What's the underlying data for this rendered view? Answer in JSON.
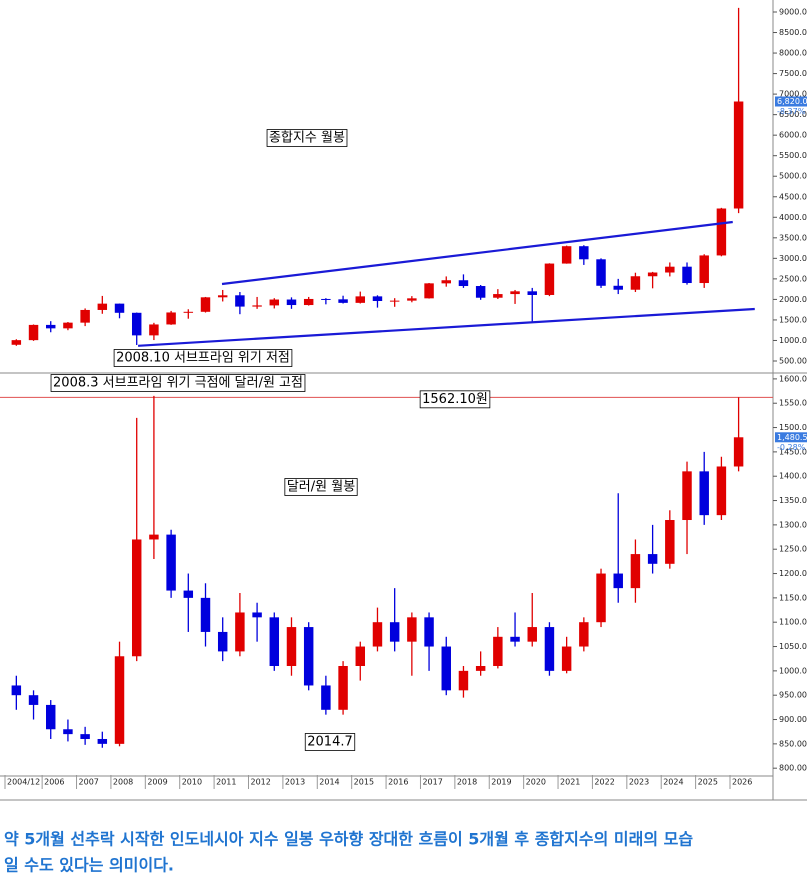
{
  "chart_data": [
    {
      "type": "candlestick",
      "up_color": "#e00000",
      "down_color": "#0000dd",
      "xlim": [
        2004.775,
        2027.25
      ],
      "ylim": [
        232,
        9219
      ],
      "yticks": [
        {
          "value": 500,
          "label": "500.00"
        },
        {
          "value": 1000,
          "label": "1000.00"
        },
        {
          "value": 1500,
          "label": "1500.00"
        },
        {
          "value": 2000,
          "label": "2000.00"
        },
        {
          "value": 2500,
          "label": "2500.00"
        },
        {
          "value": 3000,
          "label": "3000.00"
        },
        {
          "value": 3500,
          "label": "3500.00"
        },
        {
          "value": 4000,
          "label": "4000.00"
        },
        {
          "value": 4500,
          "label": "4500.00"
        },
        {
          "value": 5000,
          "label": "5000.00"
        },
        {
          "value": 5500,
          "label": "5500.00"
        },
        {
          "value": 6000,
          "label": "6000.00"
        },
        {
          "value": 6500,
          "label": "6500.00"
        },
        {
          "value": 7000,
          "label": "7000.00"
        },
        {
          "value": 7500,
          "label": "7500.00"
        },
        {
          "value": 8000,
          "label": "8000.00"
        },
        {
          "value": 8500,
          "label": "8500.00"
        },
        {
          "value": 9000,
          "label": "9000.00"
        }
      ],
      "x": [
        2005.25,
        2005.75,
        2006.25,
        2006.75,
        2007.25,
        2007.75,
        2008.25,
        2008.75,
        2009.25,
        2009.75,
        2010.25,
        2010.75,
        2011.25,
        2011.75,
        2012.25,
        2012.75,
        2013.25,
        2013.75,
        2014.25,
        2014.75,
        2015.25,
        2015.75,
        2016.25,
        2016.75,
        2017.25,
        2017.75,
        2018.25,
        2018.75,
        2019.25,
        2019.75,
        2020.25,
        2020.75,
        2021.25,
        2021.75,
        2022.25,
        2022.75,
        2023.25,
        2023.75,
        2024.25,
        2024.75,
        2025.25,
        2025.75,
        2026.25
      ],
      "open": [
        895,
        1008,
        1379,
        1295,
        1434,
        1743,
        1897,
        1674,
        1124,
        1390,
        1682,
        1698,
        2051,
        2100,
        1825,
        1854,
        1997,
        1863,
        2011,
        2002,
        1916,
        2074,
        1961,
        1970,
        2026,
        2391,
        2467,
        2326,
        2041,
        2130,
        2197,
        2108,
        2873,
        3296,
        2977,
        2332,
        2236,
        2564,
        2655,
        2797,
        2399,
        3071,
        4214
      ],
      "high": [
        1030,
        1390,
        1470,
        1450,
        1780,
        2085,
        1900,
        1680,
        1430,
        1720,
        1760,
        2060,
        2230,
        2180,
        2060,
        2030,
        2050,
        2060,
        2030,
        2090,
        2190,
        2100,
        2030,
        2080,
        2400,
        2560,
        2610,
        2350,
        2250,
        2230,
        2280,
        2880,
        3310,
        3320,
        3000,
        2500,
        2650,
        2670,
        2900,
        2900,
        3100,
        4230,
        9100
      ],
      "low": [
        870,
        990,
        1200,
        1250,
        1350,
        1650,
        1540,
        890,
        1010,
        1380,
        1530,
        1680,
        1950,
        1640,
        1770,
        1780,
        1770,
        1850,
        1880,
        1900,
        1900,
        1800,
        1820,
        1930,
        2020,
        2310,
        2280,
        1990,
        2010,
        1890,
        1440,
        2080,
        2870,
        2840,
        2280,
        2130,
        2180,
        2270,
        2560,
        2360,
        2280,
        3050,
        4100
      ],
      "close": [
        1008,
        1379,
        1295,
        1434,
        1743,
        1897,
        1674,
        1124,
        1390,
        1682,
        1698,
        2051,
        2100,
        1825,
        1854,
        1997,
        1863,
        2011,
        2002,
        1916,
        2074,
        1961,
        1970,
        2026,
        2391,
        2467,
        2326,
        2041,
        2130,
        2197,
        2108,
        2873,
        3296,
        2977,
        2332,
        2236,
        2564,
        2655,
        2797,
        2399,
        3071,
        4214,
        6820
      ],
      "trendlines": [
        {
          "color": "#1a1ad6",
          "points": [
            [
              2011.23,
              2375
            ],
            [
              2026.08,
              3885
            ]
          ]
        },
        {
          "color": "#1a1ad6",
          "points": [
            [
              2008.79,
              870
            ],
            [
              2026.72,
              1767
            ]
          ]
        }
      ],
      "annotations": [
        "종합지수 월봉",
        "2008.10 서브프라임 위기 저점"
      ],
      "price_tags": [
        "6,820.00",
        "-8.37%"
      ]
    },
    {
      "type": "candlestick",
      "up_color": "#e00000",
      "down_color": "#0000dd",
      "xlim": [
        2004.775,
        2027.25
      ],
      "ylim": [
        786,
        1608
      ],
      "xticks": [
        {
          "value": 2004.92,
          "label": "2004/12"
        },
        2006,
        2007,
        2008,
        2009,
        2010,
        2011,
        2012,
        2013,
        2014,
        2015,
        2016,
        2017,
        2018,
        2019,
        2020,
        2021,
        2022,
        2023,
        2024,
        2025,
        2026
      ],
      "yticks": [
        {
          "value": 800,
          "label": "800.00"
        },
        {
          "value": 850,
          "label": "850.00"
        },
        {
          "value": 900,
          "label": "900.00"
        },
        {
          "value": 950,
          "label": "950.00"
        },
        {
          "value": 1000,
          "label": "1000.00"
        },
        {
          "value": 1050,
          "label": "1050.00"
        },
        {
          "value": 1100,
          "label": "1100.00"
        },
        {
          "value": 1150,
          "label": "1150.00"
        },
        {
          "value": 1200,
          "label": "1200.00"
        },
        {
          "value": 1250,
          "label": "1250.00"
        },
        {
          "value": 1300,
          "label": "1300.00"
        },
        {
          "value": 1350,
          "label": "1350.00"
        },
        {
          "value": 1400,
          "label": "1400.00"
        },
        {
          "value": 1450,
          "label": "1450.00"
        },
        {
          "value": 1500,
          "label": "1500.00"
        },
        {
          "value": 1550,
          "label": "1550.00"
        },
        {
          "value": 1600,
          "label": "1600.00"
        }
      ],
      "x": [
        2005.25,
        2005.75,
        2006.25,
        2006.75,
        2007.25,
        2007.75,
        2008.25,
        2008.75,
        2009.25,
        2009.75,
        2010.25,
        2010.75,
        2011.25,
        2011.75,
        2012.25,
        2012.75,
        2013.25,
        2013.75,
        2014.25,
        2014.75,
        2015.25,
        2015.75,
        2016.25,
        2016.75,
        2017.25,
        2017.75,
        2018.25,
        2018.75,
        2019.25,
        2019.75,
        2020.25,
        2020.75,
        2021.25,
        2021.75,
        2022.25,
        2022.75,
        2023.25,
        2023.75,
        2024.25,
        2024.75,
        2025.25,
        2025.75,
        2026.25
      ],
      "open": [
        970,
        950,
        930,
        880,
        870,
        860,
        850,
        1030,
        1270,
        1280,
        1165,
        1150,
        1080,
        1040,
        1120,
        1110,
        1010,
        1090,
        970,
        920,
        1010,
        1050,
        1100,
        1060,
        1110,
        1050,
        960,
        1000,
        1010,
        1070,
        1060,
        1090,
        1000,
        1050,
        1100,
        1200,
        1170,
        1240,
        1220,
        1310,
        1410,
        1320,
        1420
      ],
      "high": [
        990,
        960,
        940,
        900,
        885,
        875,
        1060,
        1520,
        1565,
        1290,
        1200,
        1180,
        1110,
        1160,
        1140,
        1120,
        1110,
        1100,
        990,
        1020,
        1060,
        1130,
        1170,
        1120,
        1120,
        1070,
        1010,
        1040,
        1090,
        1120,
        1160,
        1100,
        1070,
        1110,
        1210,
        1365,
        1270,
        1300,
        1330,
        1430,
        1450,
        1440,
        1562.1
      ],
      "low": [
        920,
        900,
        860,
        855,
        848,
        842,
        845,
        1020,
        1230,
        1150,
        1080,
        1050,
        1020,
        1030,
        1060,
        1000,
        990,
        960,
        910,
        910,
        980,
        1040,
        1040,
        990,
        1000,
        950,
        945,
        990,
        1005,
        1050,
        1050,
        990,
        995,
        1040,
        1090,
        1140,
        1140,
        1200,
        1210,
        1240,
        1300,
        1310,
        1410
      ],
      "close": [
        950,
        930,
        880,
        870,
        860,
        850,
        1030,
        1270,
        1280,
        1165,
        1150,
        1080,
        1040,
        1120,
        1110,
        1010,
        1090,
        970,
        920,
        1010,
        1050,
        1100,
        1060,
        1110,
        1050,
        960,
        1000,
        1010,
        1070,
        1060,
        1090,
        1000,
        1050,
        1100,
        1200,
        1170,
        1240,
        1220,
        1310,
        1410,
        1320,
        1420,
        1480
      ],
      "hline": {
        "value": 1562.1,
        "label": "1562.10원",
        "color": "#e05050"
      },
      "annotations": [
        "2008.3 서브프라임 위기 극점에 달러/원 고점",
        "달러/원 월봉",
        "2014.7"
      ],
      "price_tags": [
        "1,480.50",
        "-0.28%"
      ]
    }
  ],
  "caption": [
    "약 5개월 선추락 시작한 인도네시아 지수 일봉 우하향 장대한 흐름이 5개월 후 종합지수의 미래의 모습",
    "일 수도 있다는 의미이다."
  ]
}
